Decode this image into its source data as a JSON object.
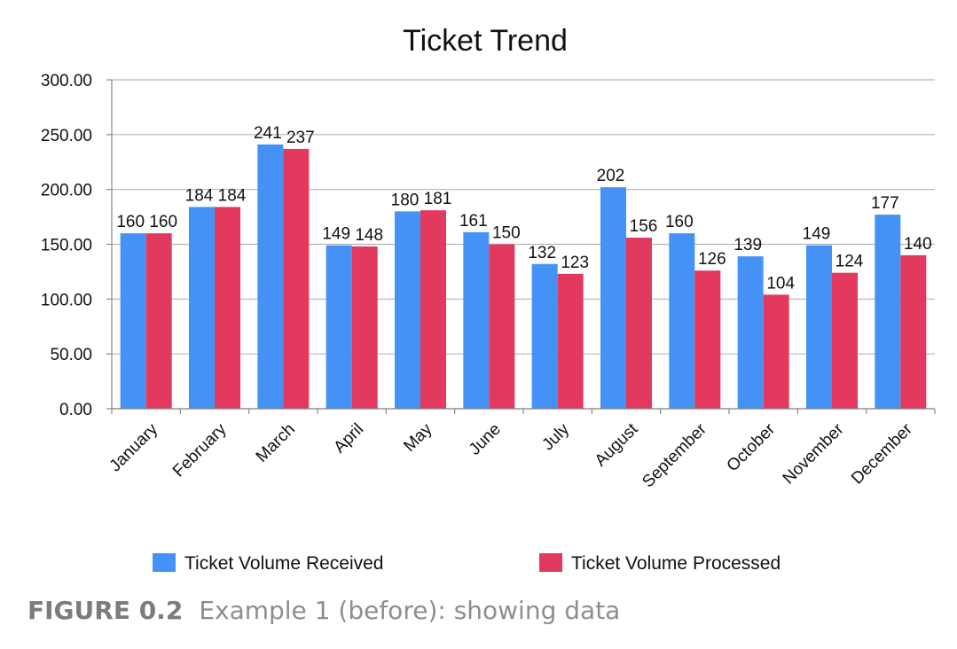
{
  "chart_data": {
    "type": "bar",
    "title": "Ticket Trend",
    "categories": [
      "January",
      "February",
      "March",
      "April",
      "May",
      "June",
      "July",
      "August",
      "September",
      "October",
      "November",
      "December"
    ],
    "series": [
      {
        "name": "Ticket Volume Received",
        "color": "#4592f7",
        "values": [
          160,
          184,
          241,
          149,
          180,
          161,
          132,
          202,
          160,
          139,
          149,
          177
        ]
      },
      {
        "name": "Ticket Volume Processed",
        "color": "#e3395f",
        "values": [
          160,
          184,
          237,
          148,
          181,
          150,
          123,
          156,
          126,
          104,
          124,
          140
        ]
      }
    ],
    "ylim": [
      0,
      300
    ],
    "yticks": [
      "0.00",
      "50.00",
      "100.00",
      "150.00",
      "200.00",
      "250.00",
      "300.00"
    ],
    "grid": true,
    "legend_position": "bottom"
  },
  "caption": {
    "label": "FIGURE 0.2",
    "text": "Example 1 (before): showing data"
  }
}
